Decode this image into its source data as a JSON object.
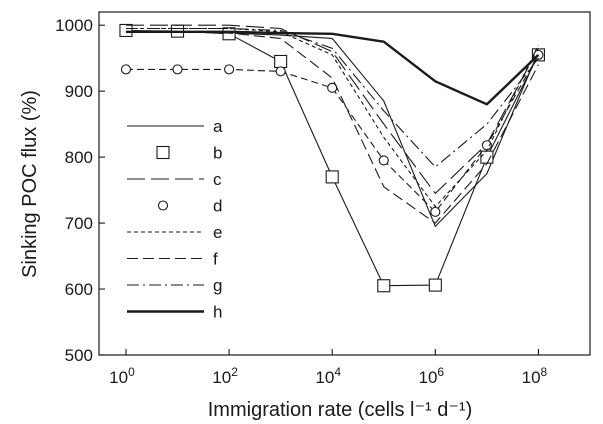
{
  "chart_data": {
    "type": "line",
    "title": "",
    "xlabel": "Immigration rate (cells l⁻¹ d⁻¹)",
    "ylabel": "Sinking POC flux (%)",
    "xscale": "log10",
    "xlim": [
      0.3,
      1000000000
    ],
    "ylim": [
      500,
      1020
    ],
    "xticks": [
      {
        "value": 1,
        "base": "10",
        "exp": "0"
      },
      {
        "value": 100,
        "base": "10",
        "exp": "2"
      },
      {
        "value": 10000,
        "base": "10",
        "exp": "4"
      },
      {
        "value": 1000000,
        "base": "10",
        "exp": "6"
      },
      {
        "value": 100000000,
        "base": "10",
        "exp": "8"
      }
    ],
    "yticks": [
      500,
      600,
      700,
      800,
      900,
      1000
    ],
    "grid": false,
    "legend_position": "left-center",
    "series": [
      {
        "name": "a",
        "style": "solid-thin",
        "marker": "none",
        "x": [
          1,
          10,
          100,
          1000,
          10000,
          100000,
          1000000,
          10000000,
          100000000
        ],
        "y": [
          990,
          990,
          988,
          985,
          980,
          885,
          695,
          775,
          960
        ]
      },
      {
        "name": "b",
        "style": "solid-thin",
        "marker": "square",
        "x": [
          1,
          10,
          100,
          1000,
          10000,
          100000,
          1000000,
          10000000,
          100000000
        ],
        "y": [
          992,
          991,
          987,
          945,
          770,
          605,
          606,
          800,
          955
        ]
      },
      {
        "name": "c",
        "style": "long-dash",
        "marker": "none",
        "x": [
          1,
          10,
          100,
          1000,
          10000,
          100000,
          1000000,
          10000000,
          100000000
        ],
        "y": [
          1000,
          1000,
          1000,
          995,
          960,
          850,
          745,
          820,
          965
        ]
      },
      {
        "name": "d",
        "style": "dashed",
        "marker": "circle",
        "x": [
          1,
          10,
          100,
          1000,
          10000,
          100000,
          1000000,
          10000000,
          100000000
        ],
        "y": [
          933,
          933,
          933,
          930,
          905,
          795,
          717,
          818,
          955
        ]
      },
      {
        "name": "e",
        "style": "short-dash",
        "marker": "none",
        "x": [
          1,
          10,
          100,
          1000,
          10000,
          100000,
          1000000,
          10000000,
          100000000
        ],
        "y": [
          995,
          995,
          995,
          990,
          955,
          830,
          725,
          810,
          970
        ]
      },
      {
        "name": "f",
        "style": "dash",
        "marker": "none",
        "x": [
          1,
          10,
          100,
          1000,
          10000,
          100000,
          1000000,
          10000000,
          100000000
        ],
        "y": [
          990,
          990,
          988,
          980,
          920,
          755,
          700,
          790,
          940
        ]
      },
      {
        "name": "g",
        "style": "dash-dot",
        "marker": "none",
        "x": [
          1,
          10,
          100,
          1000,
          10000,
          100000,
          1000000,
          10000000,
          100000000
        ],
        "y": [
          995,
          995,
          995,
          992,
          965,
          870,
          785,
          850,
          950
        ]
      },
      {
        "name": "h",
        "style": "solid-thick",
        "marker": "none",
        "x": [
          1,
          10,
          100,
          1000,
          10000,
          100000,
          1000000,
          10000000,
          100000000
        ],
        "y": [
          990,
          990,
          990,
          988,
          987,
          975,
          915,
          880,
          955
        ]
      }
    ]
  }
}
